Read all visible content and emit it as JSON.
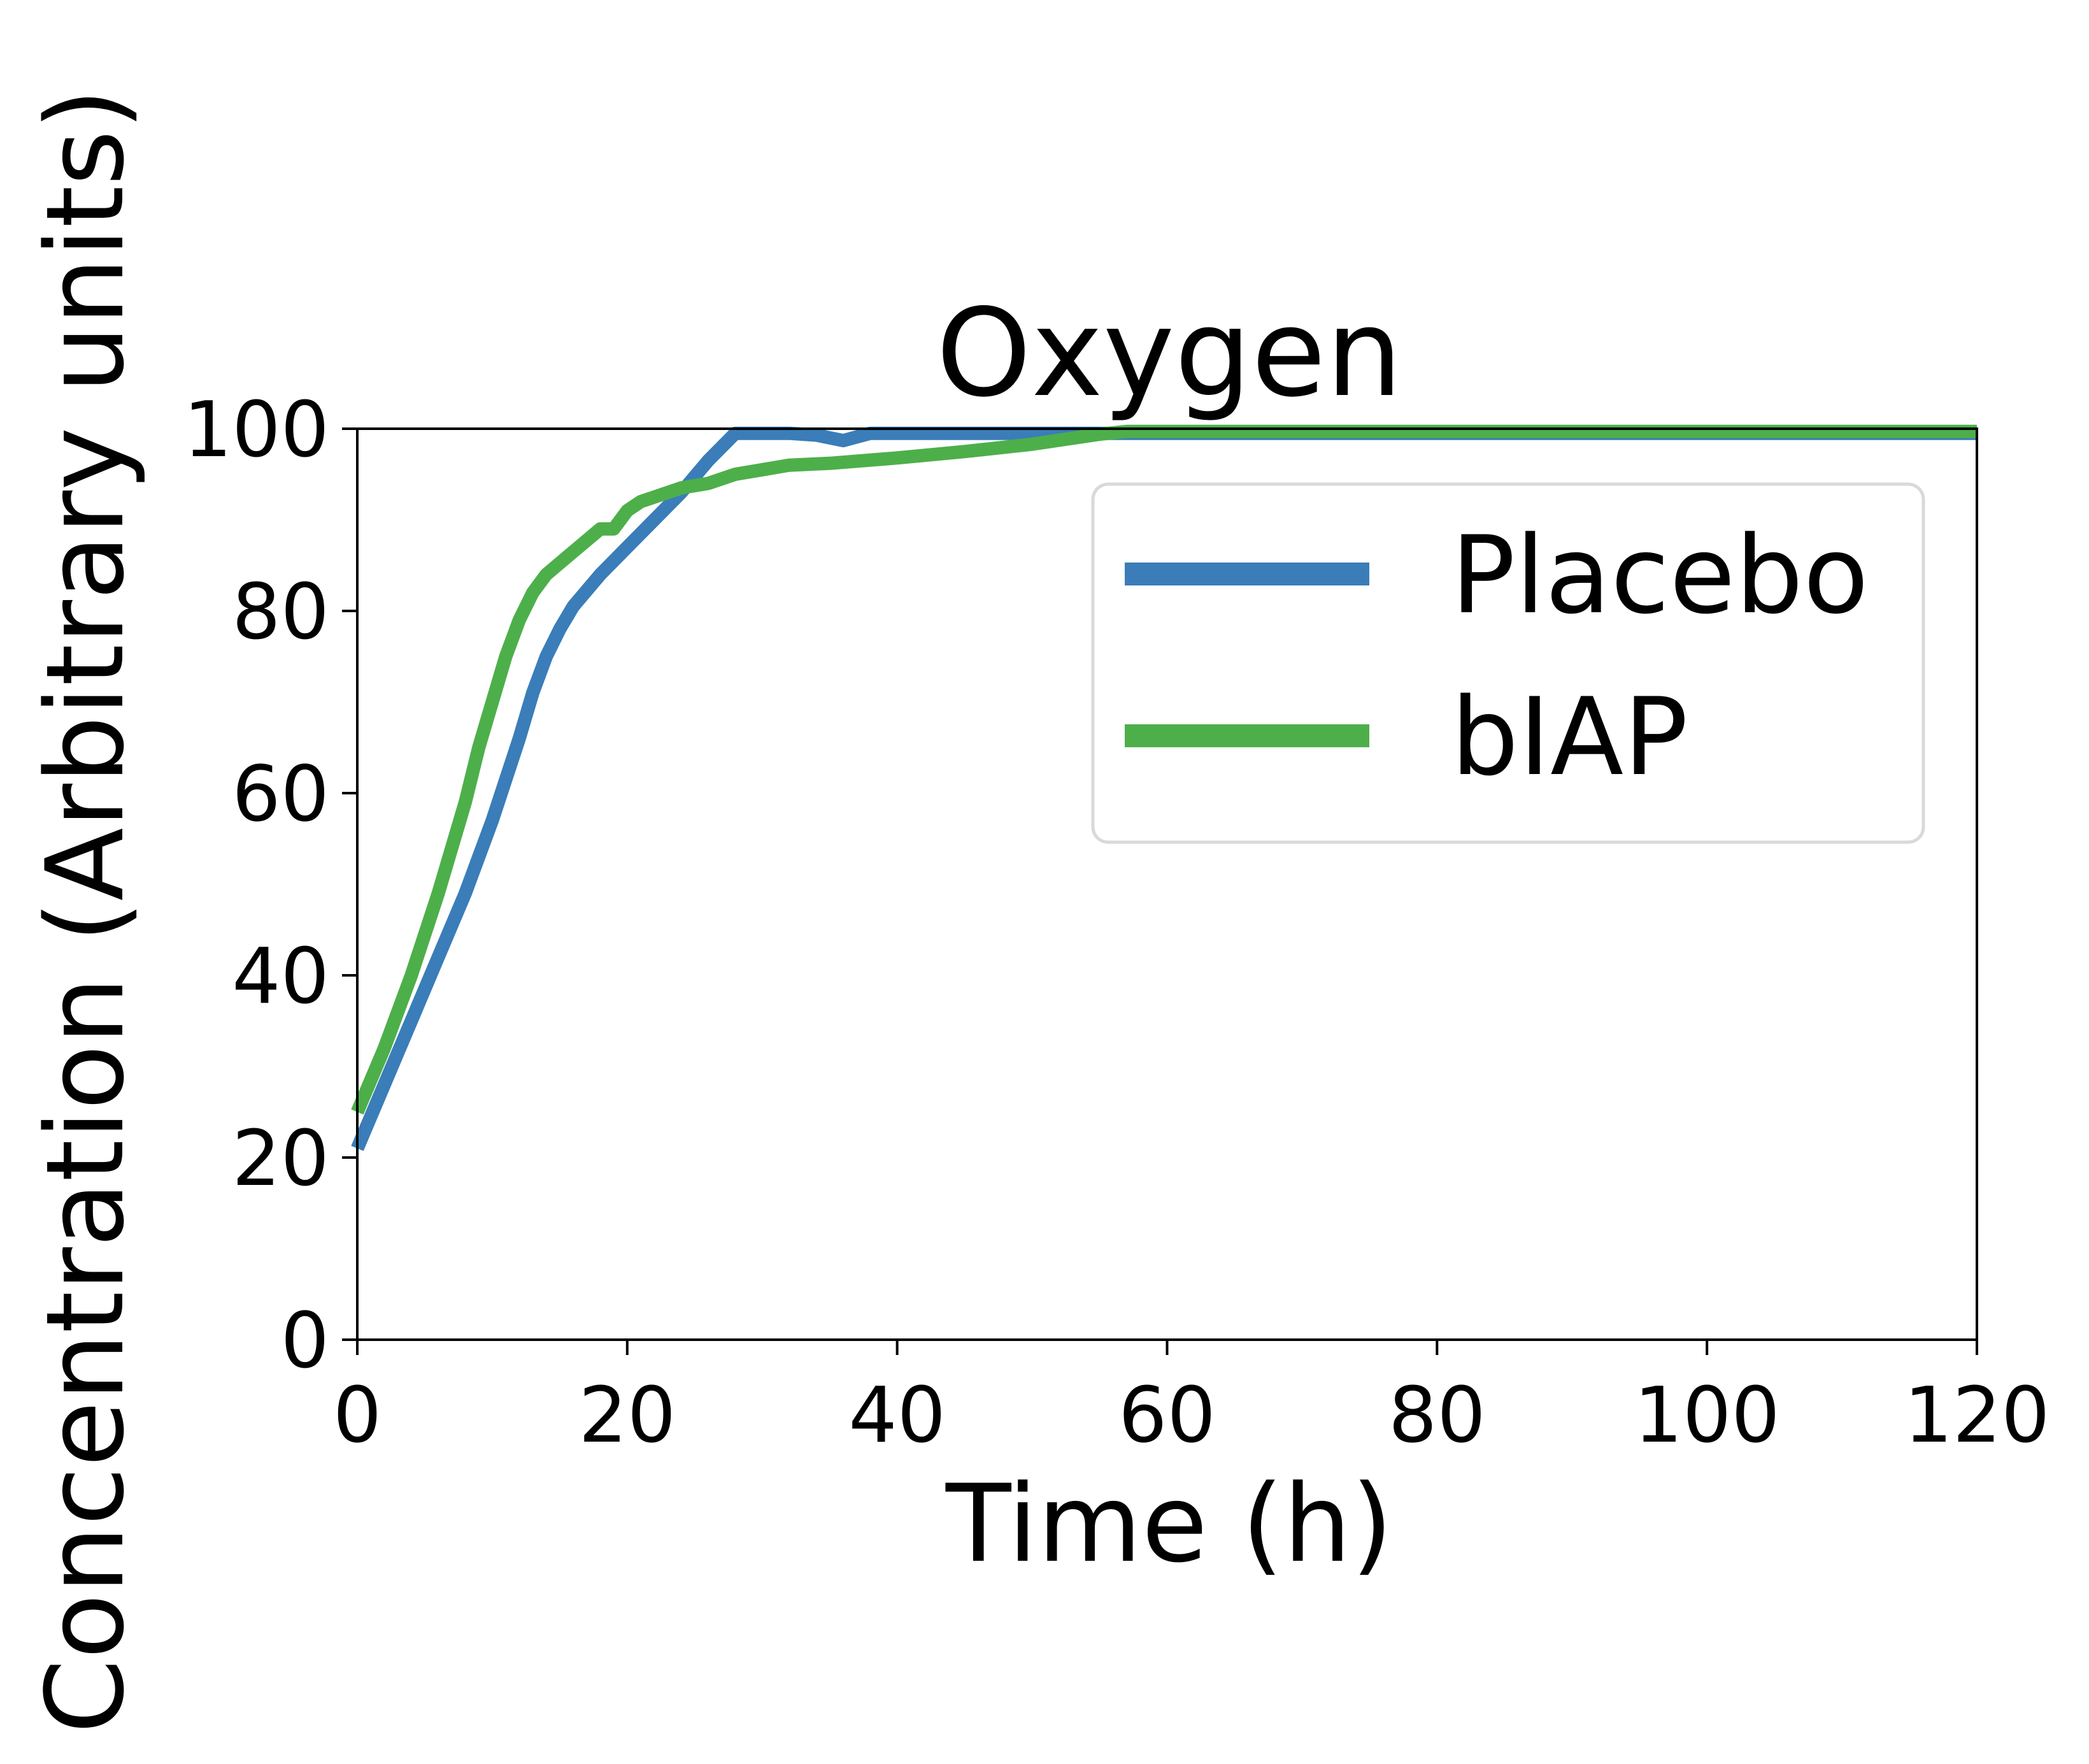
{
  "chart_data": {
    "type": "line",
    "title": "Oxygen",
    "xlabel": "Time (h)",
    "ylabel": "Concentration (Arbitrary units)",
    "xlim": [
      0,
      120
    ],
    "ylim": [
      0,
      100
    ],
    "xticks": [
      "0",
      "20",
      "40",
      "60",
      "80",
      "100",
      "120"
    ],
    "yticks": [
      "0",
      "20",
      "40",
      "60",
      "80",
      "100"
    ],
    "grid": false,
    "legend_position": "upper-right",
    "series": [
      {
        "name": "Placebo",
        "color": "#3a7db8",
        "points": [
          [
            0,
            21
          ],
          [
            2,
            28
          ],
          [
            4,
            35
          ],
          [
            6,
            42
          ],
          [
            8,
            49
          ],
          [
            10,
            57
          ],
          [
            12,
            66
          ],
          [
            13,
            71
          ],
          [
            14,
            75
          ],
          [
            15,
            78
          ],
          [
            16,
            80.5
          ],
          [
            18,
            84
          ],
          [
            20,
            87
          ],
          [
            22,
            90
          ],
          [
            24,
            93
          ],
          [
            26,
            96.5
          ],
          [
            28,
            99.5
          ],
          [
            30,
            99.5
          ],
          [
            32,
            99.5
          ],
          [
            34,
            99.3
          ],
          [
            36,
            98.7
          ],
          [
            38,
            99.5
          ],
          [
            40,
            99.5
          ],
          [
            50,
            99.5
          ],
          [
            60,
            99.5
          ],
          [
            80,
            99.5
          ],
          [
            100,
            99.5
          ],
          [
            120,
            99.5
          ]
        ]
      },
      {
        "name": "bIAP",
        "color": "#4daf4a",
        "points": [
          [
            0,
            25
          ],
          [
            2,
            32
          ],
          [
            4,
            40
          ],
          [
            6,
            49
          ],
          [
            8,
            59
          ],
          [
            9,
            65
          ],
          [
            10,
            70
          ],
          [
            11,
            75
          ],
          [
            12,
            79
          ],
          [
            13,
            82
          ],
          [
            14,
            84
          ],
          [
            16,
            86.5
          ],
          [
            18,
            89
          ],
          [
            19,
            89
          ],
          [
            20,
            91
          ],
          [
            21,
            92
          ],
          [
            22,
            92.5
          ],
          [
            24,
            93.5
          ],
          [
            26,
            94
          ],
          [
            28,
            95
          ],
          [
            30,
            95.5
          ],
          [
            32,
            96
          ],
          [
            35,
            96.2
          ],
          [
            40,
            96.8
          ],
          [
            45,
            97.5
          ],
          [
            50,
            98.3
          ],
          [
            55,
            99.4
          ],
          [
            57,
            99.7
          ],
          [
            60,
            99.7
          ],
          [
            80,
            99.7
          ],
          [
            100,
            99.7
          ],
          [
            120,
            99.7
          ]
        ]
      }
    ]
  }
}
